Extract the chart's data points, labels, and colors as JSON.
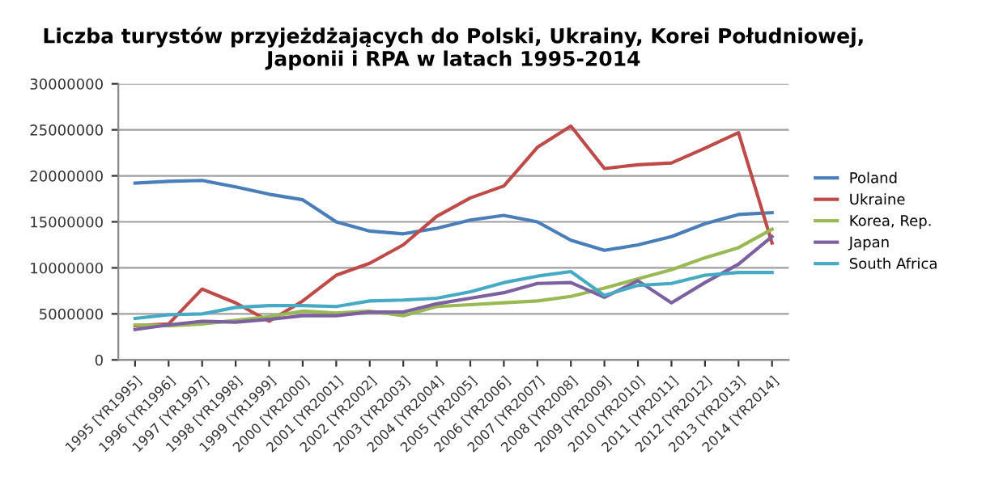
{
  "chart_data": {
    "type": "line",
    "title": "Liczba turystów przyjeżdżających do Polski, Ukrainy, Korei Południowej,\nJaponii i RPA w latach 1995-2014",
    "categories": [
      "1995 [YR1995]",
      "1996 [YR1996]",
      "1997 [YR1997]",
      "1998 [YR1998]",
      "1999 [YR1999]",
      "2000 [YR2000]",
      "2001 [YR2001]",
      "2002 [YR2002]",
      "2003 [YR2003]",
      "2004 [YR2004]",
      "2005 [YR2005]",
      "2006 [YR2006]",
      "2007 [YR2007]",
      "2008 [YR2008]",
      "2009 [YR2009]",
      "2010 [YR2010]",
      "2011 [YR2011]",
      "2012 [YR2012]",
      "2013 [YR2013]",
      "2014 [YR2014]"
    ],
    "series": [
      {
        "name": "Poland",
        "color": "#4a7ebb",
        "values": [
          19200000,
          19400000,
          19500000,
          18800000,
          18000000,
          17400000,
          15000000,
          14000000,
          13700000,
          14300000,
          15200000,
          15700000,
          15000000,
          13000000,
          11900000,
          12500000,
          13400000,
          14800000,
          15800000,
          16000000
        ]
      },
      {
        "name": "Ukraine",
        "color": "#be4b48",
        "values": [
          3700000,
          3900000,
          7700000,
          6200000,
          4200000,
          6400000,
          9200000,
          10500000,
          12500000,
          15600000,
          17600000,
          18900000,
          23100000,
          25400000,
          20800000,
          21200000,
          21400000,
          23000000,
          24700000,
          12700000
        ]
      },
      {
        "name": "Korea, Rep.",
        "color": "#98b954",
        "values": [
          3800000,
          3700000,
          3900000,
          4300000,
          4700000,
          5300000,
          5100000,
          5300000,
          4800000,
          5800000,
          6000000,
          6200000,
          6400000,
          6900000,
          7800000,
          8800000,
          9800000,
          11100000,
          12200000,
          14200000
        ]
      },
      {
        "name": "Japan",
        "color": "#7d60a0",
        "values": [
          3300000,
          3800000,
          4200000,
          4100000,
          4400000,
          4800000,
          4800000,
          5200000,
          5200000,
          6100000,
          6700000,
          7300000,
          8300000,
          8400000,
          6800000,
          8600000,
          6200000,
          8400000,
          10400000,
          13400000
        ]
      },
      {
        "name": "South Africa",
        "color": "#46aac5",
        "values": [
          4500000,
          4900000,
          5000000,
          5700000,
          5900000,
          5900000,
          5800000,
          6400000,
          6500000,
          6700000,
          7400000,
          8400000,
          9100000,
          9600000,
          7000000,
          8100000,
          8300000,
          9200000,
          9500000,
          9500000
        ]
      }
    ],
    "ylim": [
      0,
      30000000
    ],
    "yticks": [
      0,
      5000000,
      10000000,
      15000000,
      20000000,
      25000000,
      30000000
    ],
    "grid": "y",
    "legend": "right",
    "marker": "none",
    "line_style": "solid"
  }
}
